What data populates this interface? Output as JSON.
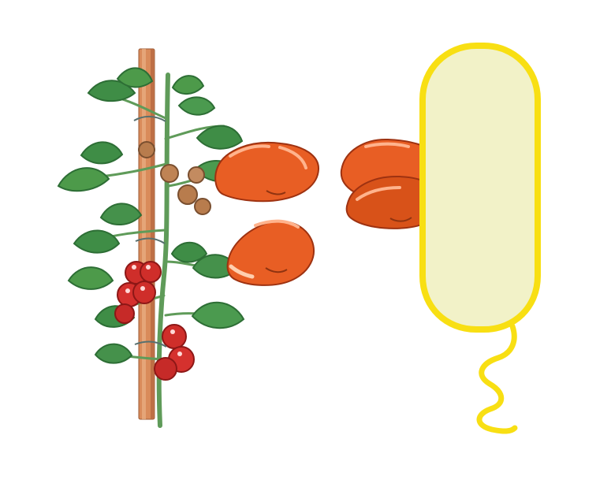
{
  "scene": {
    "left_subject": "tomato-plant-on-stake",
    "middle_subject": "boxing-gloves",
    "right_subject": "flagellated-bacterium",
    "colors": {
      "background": "#ffffff",
      "stake": "#d98b5a",
      "stake_shadow": "#b76840",
      "stem": "#5f9b59",
      "leaf": "#3f8d46",
      "leaf_shadow": "#2d6e35",
      "tomato_ripe": "#cf2e2a",
      "tomato_highlight": "#ffd9d7",
      "tomato_unripe": "#b87c4d",
      "glove": "#e85e24",
      "glove_dark": "#c84416",
      "glove_cuff": "#f08a54",
      "bacterium_fill": "#f2f2c8",
      "bacterium_outline": "#f8df13"
    }
  }
}
